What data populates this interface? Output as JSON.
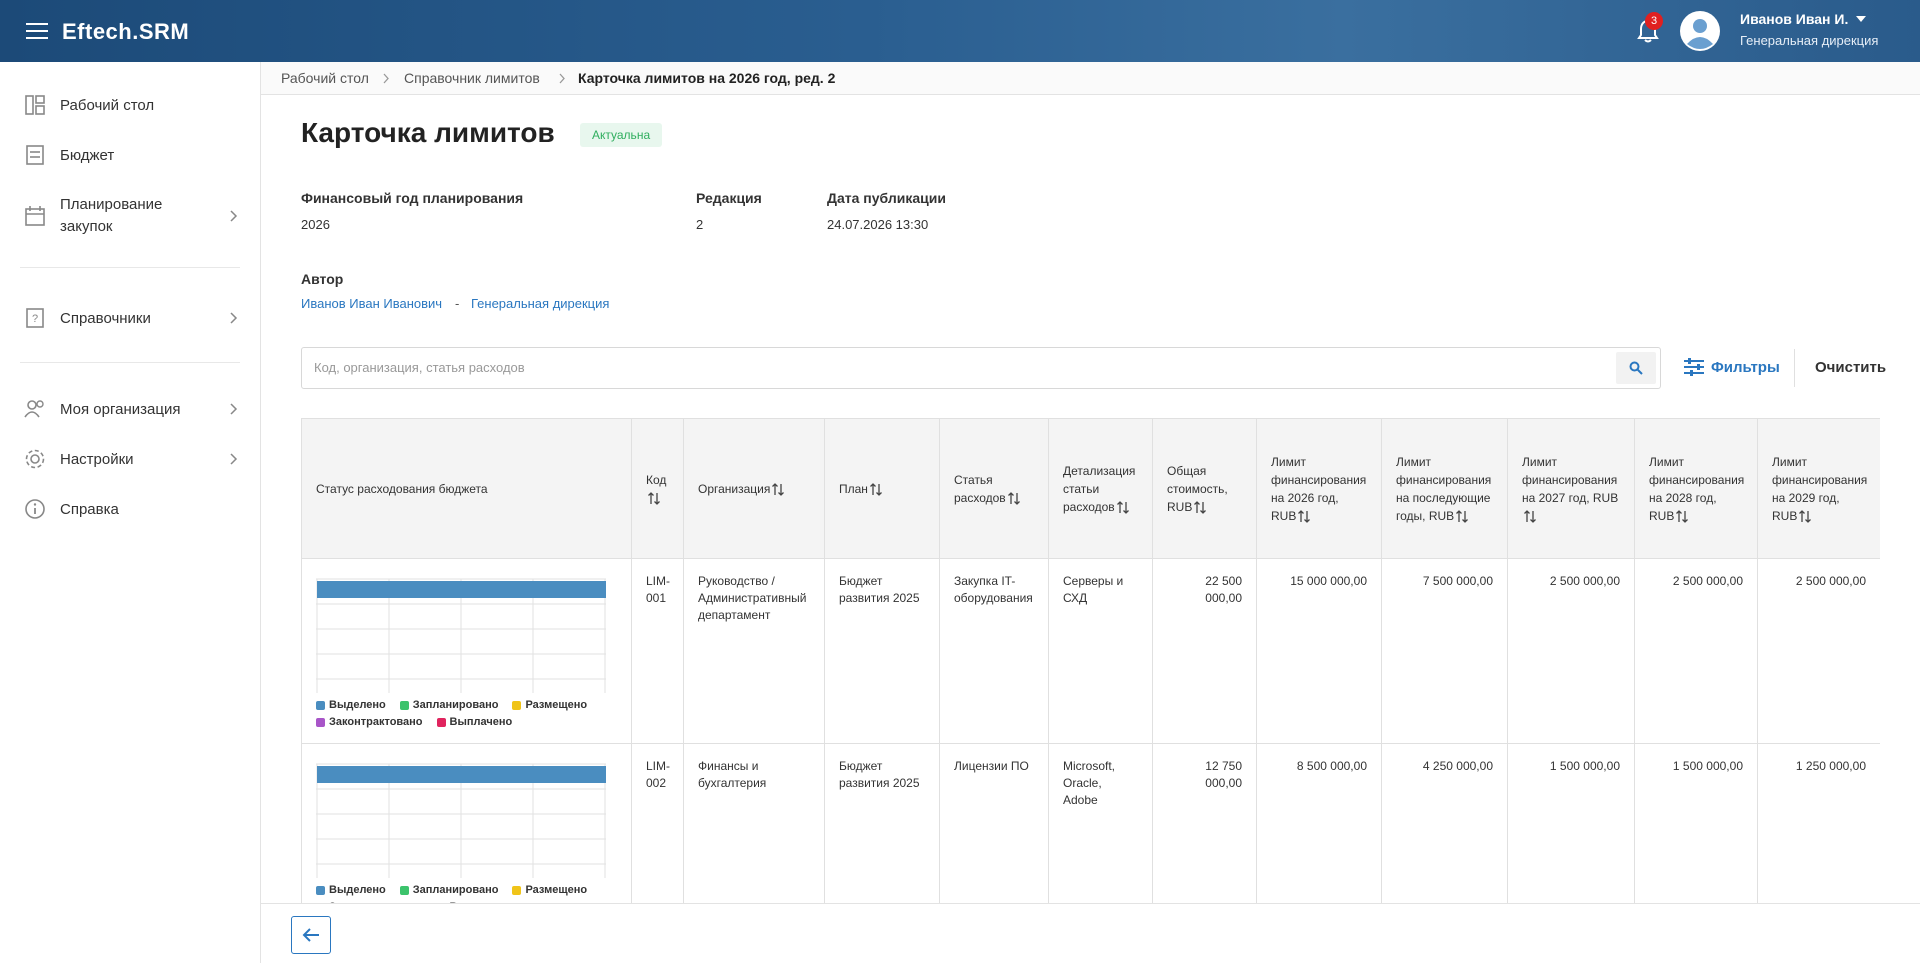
{
  "header": {
    "menu_icon": "≡",
    "app_name": "Eftech.SRM",
    "notification_count": 3,
    "user_name": "Иванов Иван И.",
    "user_department": "Генеральная дирекция"
  },
  "sidebar": {
    "items": [
      {
        "label": "Рабочий стол"
      },
      {
        "label": "Бюджет"
      },
      {
        "label": "Планирование закупок"
      },
      {
        "label": "Справочники"
      },
      {
        "label": "Моя организация"
      },
      {
        "label": "Настройки"
      },
      {
        "label": "Справка"
      }
    ]
  },
  "breadcrumbs": [
    "Рабочий стол",
    "Справочник лимитов",
    "Карточка лимитов на 2026 год, ред. 2"
  ],
  "card": {
    "title": "Карточка лимитов",
    "status": "Актуальна",
    "fields": [
      {
        "label": "Финансовый год планирования",
        "value": "2026"
      },
      {
        "label": "Редакция",
        "value": "2"
      },
      {
        "label": "Дата публикации",
        "value": "24.07.2026 13:30"
      }
    ],
    "author": {
      "label": "Автор",
      "name": "Иванов Иван Иванович",
      "separator": "-",
      "department": "Генеральная дирекция"
    }
  },
  "search": {
    "placeholder": "Код, организация, статья расходов",
    "filters": "Фильтры",
    "clear": "Очистить"
  },
  "table": {
    "columns": [
      "Статус расходования бюджета",
      "Код",
      "Организация",
      "План",
      "Статья расходов",
      "Детализация статьи расходов",
      "Общая стоимость, RUB",
      "Лимит финансирования на 2026 год, RUB",
      "Лимит финансирования на последующие годы, RUB",
      "Лимит финансирования на 2027 год, RUB",
      "Лимит финансирования на 2028 год, RUB",
      "Лимит финансирования на 2029 год, RUB"
    ],
    "legend": [
      {
        "name": "Выделено",
        "color": "#4a8dc0"
      },
      {
        "name": "Запланировано",
        "color": "#3cc36c"
      },
      {
        "name": "Размещено",
        "color": "#f0c419"
      },
      {
        "name": "Законтрактовано",
        "color": "#a855c8"
      },
      {
        "name": "Выплачено",
        "color": "#e0245e"
      }
    ],
    "rows": [
      [
        "LIM-001",
        "Руководство / Административный департамент",
        "Бюджет развития 2025",
        "Закупка IT-оборудования",
        "Серверы и СХД",
        "22 500 000,00",
        "15 000 000,00",
        "7 500 000,00",
        "2 500 000,00",
        "2 500 000,00",
        "2 500 000,00"
      ],
      [
        "LIM-002",
        "Финансы и бухгалтерия",
        "Бюджет развития 2025",
        "Лицензии ПО",
        "Microsoft, Oracle, Adobe",
        "12 750 000,00",
        "8 500 000,00",
        "4 250 000,00",
        "1 500 000,00",
        "1 500 000,00",
        "1 250 000,00"
      ]
    ]
  }
}
